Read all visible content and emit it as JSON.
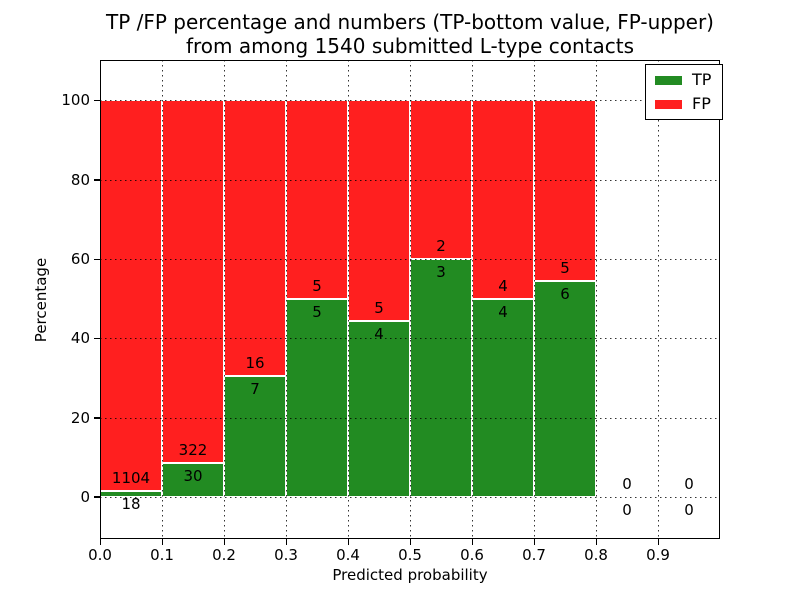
{
  "chart_data": {
    "type": "bar",
    "subtype": "stacked-percentage-histogram",
    "title": "TP /FP percentage and numbers (TP-bottom value, FP-upper)\nfrom among 1540 submitted L-type contacts",
    "title_lines": [
      "TP /FP percentage and numbers (TP-bottom value, FP-upper)",
      "from among 1540 submitted L-type contacts"
    ],
    "total_submitted": 1540,
    "xlabel": "Predicted probability",
    "ylabel": "Percentage",
    "xlim": [
      0.0,
      1.0
    ],
    "ylim": [
      -10.6,
      110.2
    ],
    "xticks": [
      "0.0",
      "0.1",
      "0.2",
      "0.3",
      "0.4",
      "0.5",
      "0.6",
      "0.7",
      "0.8",
      "0.9"
    ],
    "yticks": [
      0,
      20,
      40,
      60,
      80,
      100
    ],
    "grid": "dotted",
    "grid_above_bars": true,
    "bin_width": 0.1,
    "bins": [
      {
        "range": [
          0.0,
          0.1
        ],
        "tp": 18,
        "fp": 1104,
        "tp_pct": 1.6
      },
      {
        "range": [
          0.1,
          0.2
        ],
        "tp": 30,
        "fp": 322,
        "tp_pct": 8.52
      },
      {
        "range": [
          0.2,
          0.3
        ],
        "tp": 7,
        "fp": 16,
        "tp_pct": 30.43
      },
      {
        "range": [
          0.3,
          0.4
        ],
        "tp": 5,
        "fp": 5,
        "tp_pct": 50.0
      },
      {
        "range": [
          0.4,
          0.5
        ],
        "tp": 4,
        "fp": 5,
        "tp_pct": 44.44
      },
      {
        "range": [
          0.5,
          0.6
        ],
        "tp": 3,
        "fp": 2,
        "tp_pct": 60.0
      },
      {
        "range": [
          0.6,
          0.7
        ],
        "tp": 4,
        "fp": 4,
        "tp_pct": 50.0
      },
      {
        "range": [
          0.7,
          0.8
        ],
        "tp": 6,
        "fp": 5,
        "tp_pct": 54.55
      },
      {
        "range": [
          0.8,
          0.9
        ],
        "tp": 0,
        "fp": 0,
        "tp_pct": null
      },
      {
        "range": [
          0.9,
          1.0
        ],
        "tp": 0,
        "fp": 0,
        "tp_pct": null
      }
    ],
    "colors": {
      "tp": "#228b22",
      "fp": "#ff1f1f"
    },
    "legend": {
      "position": "upper right",
      "entries": [
        {
          "label": "TP",
          "color": "#228b22"
        },
        {
          "label": "FP",
          "color": "#ff1f1f"
        }
      ]
    }
  }
}
